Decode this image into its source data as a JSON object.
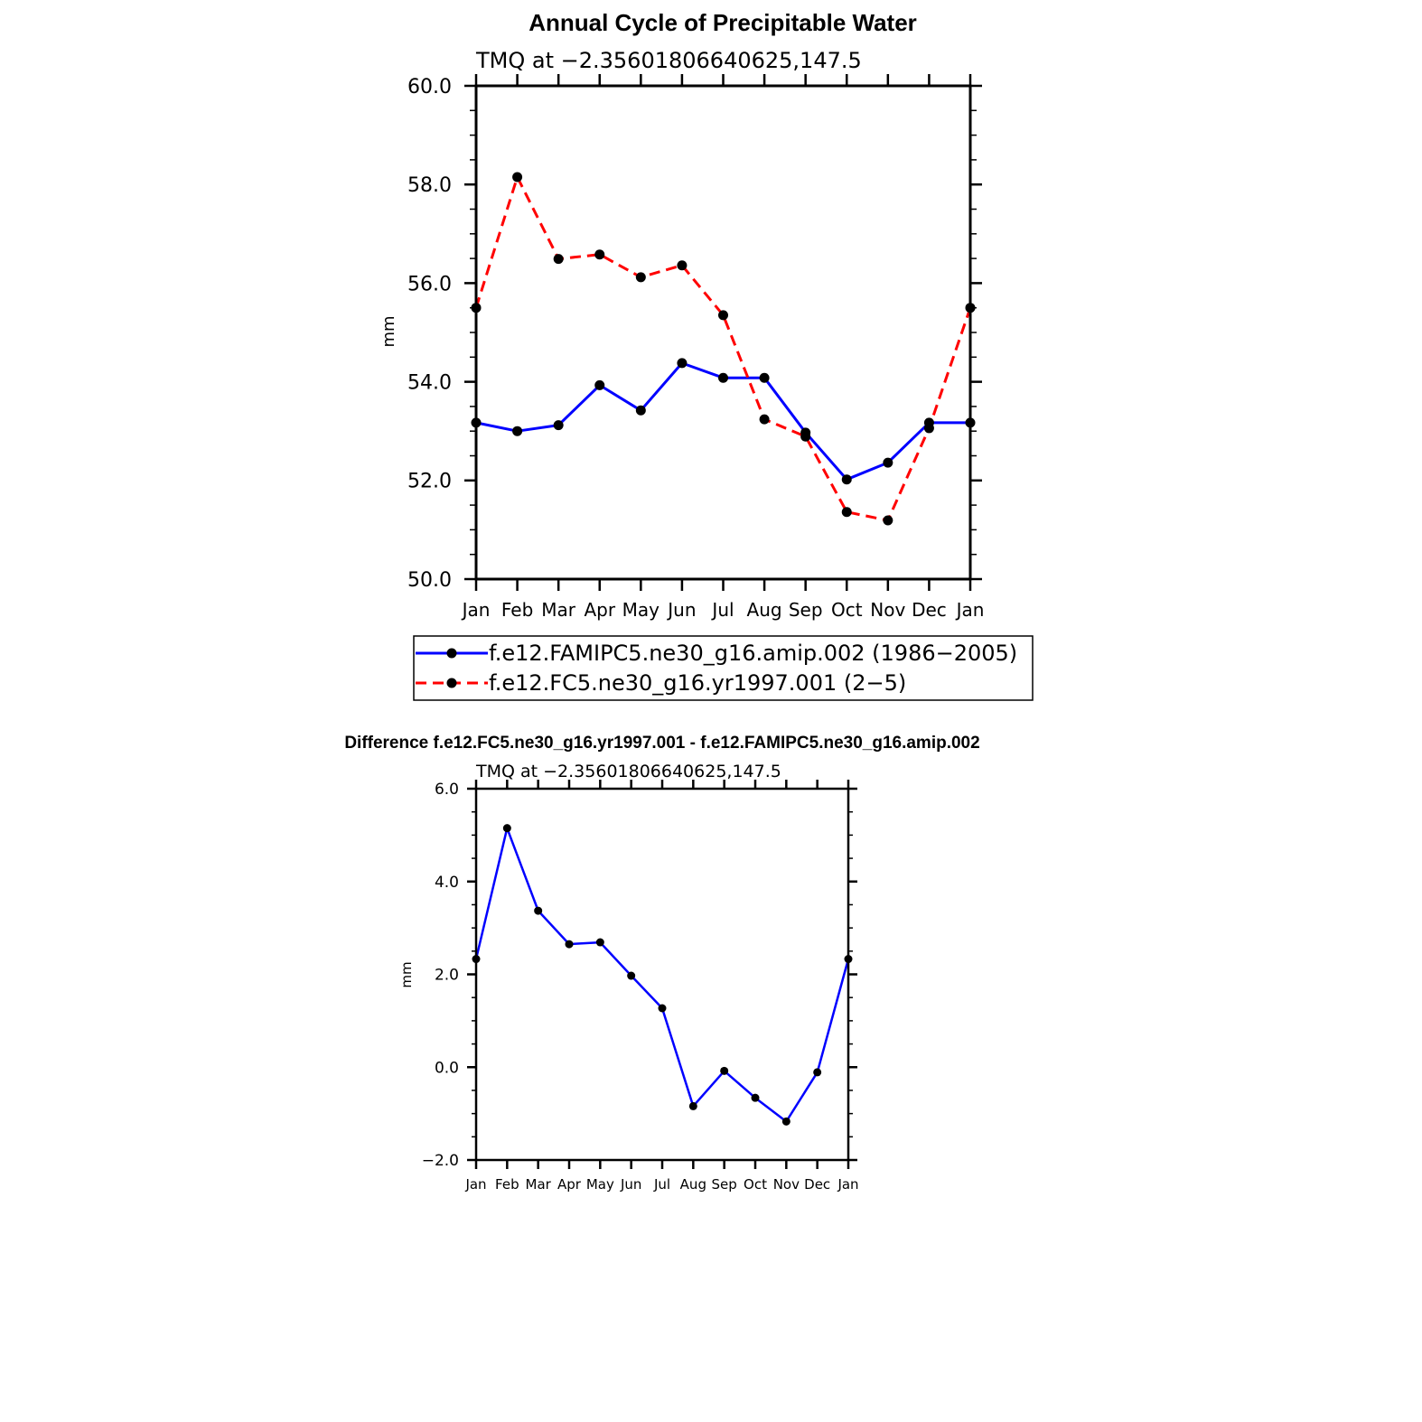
{
  "chart_data": [
    {
      "type": "line",
      "title": "Annual Cycle of Precipitable Water",
      "subtitle": "TMQ at −2.35601806640625,147.5",
      "xlabel": "",
      "ylabel": "mm",
      "categories": [
        "Jan",
        "Feb",
        "Mar",
        "Apr",
        "May",
        "Jun",
        "Jul",
        "Aug",
        "Sep",
        "Oct",
        "Nov",
        "Dec",
        "Jan"
      ],
      "ylim": [
        50.0,
        60.0
      ],
      "yticks": [
        "50.0",
        "52.0",
        "54.0",
        "56.0",
        "58.0",
        "60.0"
      ],
      "grid": false,
      "legend_position": "bottom",
      "series": [
        {
          "name": "f.e12.FAMIPC5.ne30_g16.amip.002 (1986−2005)",
          "color": "#0000ff",
          "dash": "solid",
          "values": [
            53.17,
            53.0,
            53.12,
            53.93,
            53.42,
            54.38,
            54.08,
            54.08,
            52.97,
            52.02,
            52.36,
            53.17,
            53.17
          ]
        },
        {
          "name": "f.e12.FC5.ne30_g16.yr1997.001 (2−5)",
          "color": "#ff0000",
          "dash": "dashed",
          "values": [
            55.5,
            58.15,
            56.49,
            56.58,
            56.12,
            56.36,
            55.35,
            53.24,
            52.89,
            51.36,
            51.19,
            53.06,
            55.5
          ]
        }
      ]
    },
    {
      "type": "line",
      "title": "Difference f.e12.FC5.ne30_g16.yr1997.001 - f.e12.FAMIPC5.ne30_g16.amip.002",
      "subtitle": "TMQ at −2.35601806640625,147.5",
      "xlabel": "",
      "ylabel": "mm",
      "categories": [
        "Jan",
        "Feb",
        "Mar",
        "Apr",
        "May",
        "Jun",
        "Jul",
        "Aug",
        "Sep",
        "Oct",
        "Nov",
        "Dec",
        "Jan"
      ],
      "ylim": [
        -2.0,
        6.0
      ],
      "yticks": [
        "−2.0",
        "0.0",
        "2.0",
        "4.0",
        "6.0"
      ],
      "grid": false,
      "series": [
        {
          "color": "#0000ff",
          "dash": "solid",
          "values": [
            2.33,
            5.15,
            3.37,
            2.65,
            2.69,
            1.97,
            1.27,
            -0.84,
            -0.08,
            -0.66,
            -1.17,
            -0.11,
            2.33
          ]
        }
      ]
    }
  ]
}
